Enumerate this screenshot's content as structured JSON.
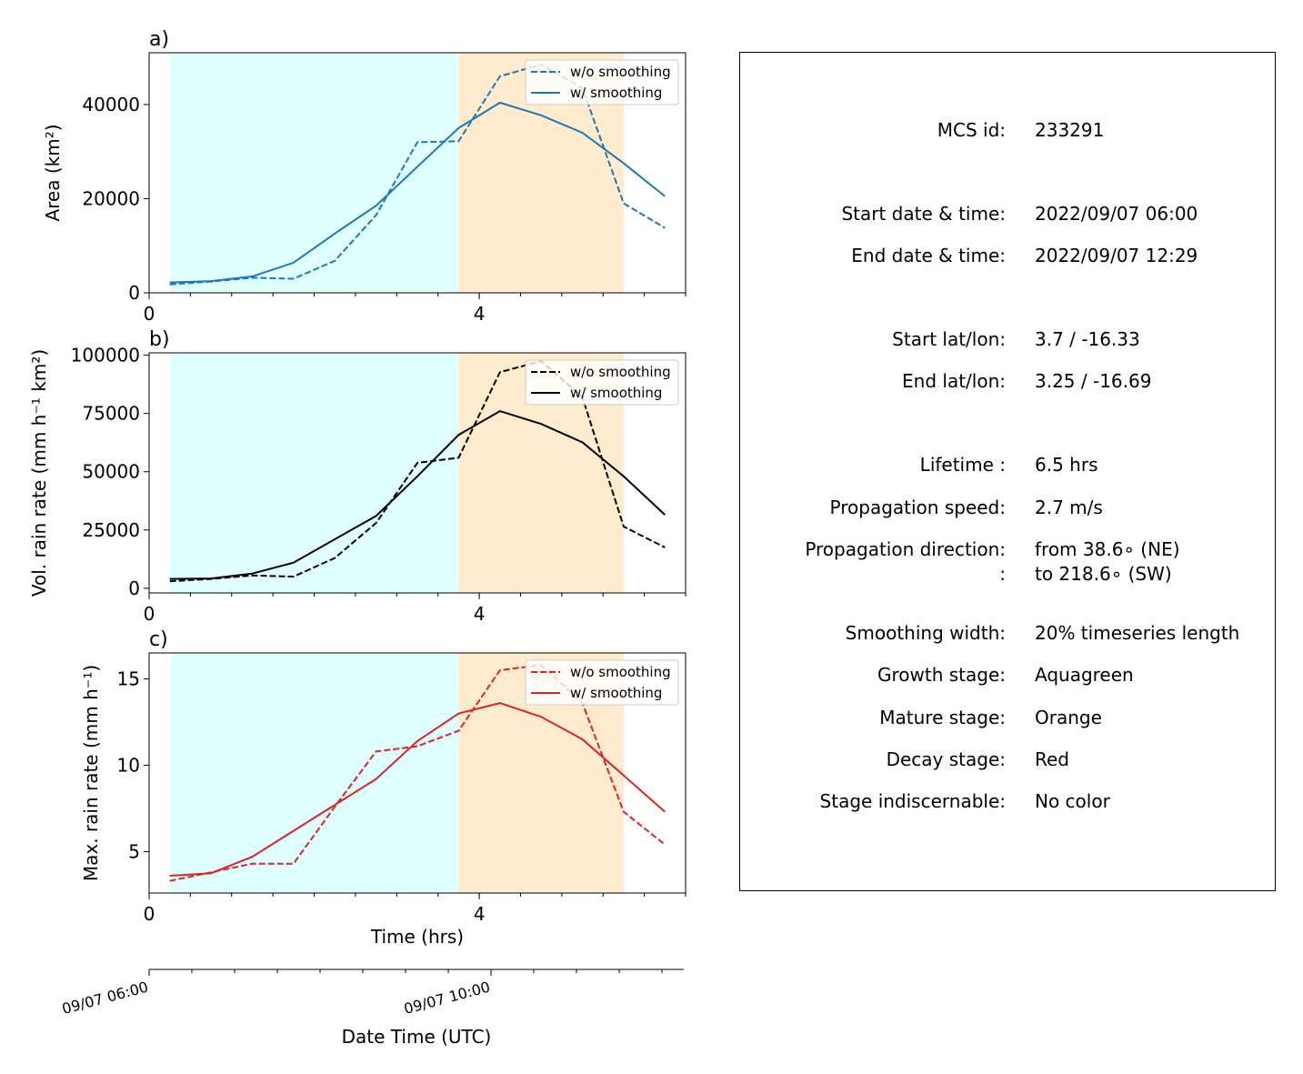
{
  "colors": {
    "growth_span": "#e0ffff",
    "mature_span": "#ffebcd",
    "series_area": "#1f77b4",
    "series_vol": "#000000",
    "series_max": "#d62728"
  },
  "time_axis": {
    "xlabel": "Time (hrs)",
    "ticks": [
      0,
      4
    ],
    "tick_labels": [
      "0",
      "4"
    ],
    "minor_step": 0.5,
    "xlim": [
      0,
      6.5
    ]
  },
  "datetime_axis": {
    "label": "Date Time (UTC)",
    "tick_labels": [
      "09/07 06:00",
      "09/07 10:00"
    ],
    "tick_hours": [
      0,
      4
    ]
  },
  "chart_data": [
    {
      "type": "line",
      "panel_label": "a)",
      "ylabel": "Area  (km²)",
      "ylim": [
        0,
        51000
      ],
      "yticks": [
        0,
        20000,
        40000
      ],
      "ytick_labels": [
        "0",
        "20000",
        "40000"
      ],
      "stages": [
        {
          "name": "growth",
          "start": 0.25,
          "end": 3.75
        },
        {
          "name": "mature",
          "start": 3.75,
          "end": 5.75
        }
      ],
      "legend": [
        "w/o smoothing",
        "w/ smoothing"
      ],
      "x": [
        0.25,
        0.75,
        1.25,
        1.75,
        2.25,
        2.75,
        3.25,
        3.75,
        4.25,
        4.75,
        5.25,
        5.75,
        6.25
      ],
      "series": [
        {
          "name": "w/o smoothing",
          "style": "dashed",
          "values": [
            1800,
            2400,
            3200,
            3000,
            6800,
            16500,
            32000,
            32200,
            46000,
            48500,
            43500,
            19000,
            13800
          ]
        },
        {
          "name": "w/ smoothing",
          "style": "solid",
          "values": [
            2200,
            2500,
            3500,
            6400,
            12600,
            18500,
            26800,
            35000,
            40400,
            37700,
            34000,
            27500,
            20500
          ]
        }
      ]
    },
    {
      "type": "line",
      "panel_label": "b)",
      "ylabel": "Vol. rain rate (mm h⁻¹ km²)",
      "ylim": [
        -2000,
        101000
      ],
      "yticks": [
        0,
        25000,
        50000,
        75000,
        100000
      ],
      "ytick_labels": [
        "0",
        "25000",
        "50000",
        "75000",
        "100000"
      ],
      "stages": [
        {
          "name": "growth",
          "start": 0.25,
          "end": 3.75
        },
        {
          "name": "mature",
          "start": 3.75,
          "end": 5.75
        }
      ],
      "legend": [
        "w/o smoothing",
        "w/ smoothing"
      ],
      "x": [
        0.25,
        0.75,
        1.25,
        1.75,
        2.25,
        2.75,
        3.25,
        3.75,
        4.25,
        4.75,
        5.25,
        5.75,
        6.25
      ],
      "series": [
        {
          "name": "w/o smoothing",
          "style": "dashed",
          "values": [
            3000,
            4000,
            5500,
            5000,
            13000,
            28000,
            53800,
            56000,
            92700,
            97500,
            82000,
            26500,
            17500
          ]
        },
        {
          "name": "w/ smoothing",
          "style": "solid",
          "values": [
            4000,
            4200,
            6300,
            11000,
            21000,
            31000,
            48000,
            65800,
            76000,
            70500,
            62600,
            48000,
            31500
          ]
        }
      ]
    },
    {
      "type": "line",
      "panel_label": "c)",
      "ylabel": "Max. rain rate  (mm h⁻¹)",
      "ylim": [
        2.6,
        16.5
      ],
      "yticks": [
        5,
        10,
        15
      ],
      "ytick_labels": [
        "5",
        "10",
        "15"
      ],
      "stages": [
        {
          "name": "growth",
          "start": 0.25,
          "end": 3.75
        },
        {
          "name": "mature",
          "start": 3.75,
          "end": 5.75
        }
      ],
      "legend": [
        "w/o smoothing",
        "w/ smoothing"
      ],
      "x": [
        0.25,
        0.75,
        1.25,
        1.75,
        2.25,
        2.75,
        3.25,
        3.75,
        4.25,
        4.75,
        5.25,
        5.75,
        6.25
      ],
      "series": [
        {
          "name": "w/o smoothing",
          "style": "dashed",
          "values": [
            3.3,
            3.8,
            4.3,
            4.3,
            7.6,
            10.8,
            11.1,
            12.0,
            15.5,
            15.8,
            13.6,
            7.3,
            5.4
          ]
        },
        {
          "name": "w/ smoothing",
          "style": "solid",
          "values": [
            3.6,
            3.75,
            4.7,
            6.2,
            7.7,
            9.2,
            11.4,
            13.0,
            13.6,
            12.8,
            11.5,
            9.4,
            7.3
          ]
        }
      ]
    }
  ],
  "info": [
    {
      "label": "MCS id:",
      "value": "233291"
    },
    {
      "label": "Start date & time:",
      "value": "2022/09/07 06:00"
    },
    {
      "label": "End date & time:",
      "value": "2022/09/07 12:29"
    },
    {
      "label": "Start lat/lon:",
      "value": "3.7 / -16.33"
    },
    {
      "label": "End lat/lon:",
      "value": "3.25 / -16.69"
    },
    {
      "label": "Lifetime :",
      "value": "6.5 hrs"
    },
    {
      "label": "Propagation speed:",
      "value": "2.7 m/s"
    },
    {
      "label": "Propagation direction:",
      "value": "from  38.6∘ (NE)"
    },
    {
      "label": ":",
      "value": "to   218.6∘ (SW)"
    },
    {
      "label": "Smoothing width:",
      "value": "20% timeseries length"
    },
    {
      "label": "Growth stage:",
      "value": "Aquagreen"
    },
    {
      "label": "Mature stage:",
      "value": "Orange"
    },
    {
      "label": "Decay stage:",
      "value": "Red"
    },
    {
      "label": "Stage indiscernable:",
      "value": "No color"
    }
  ]
}
